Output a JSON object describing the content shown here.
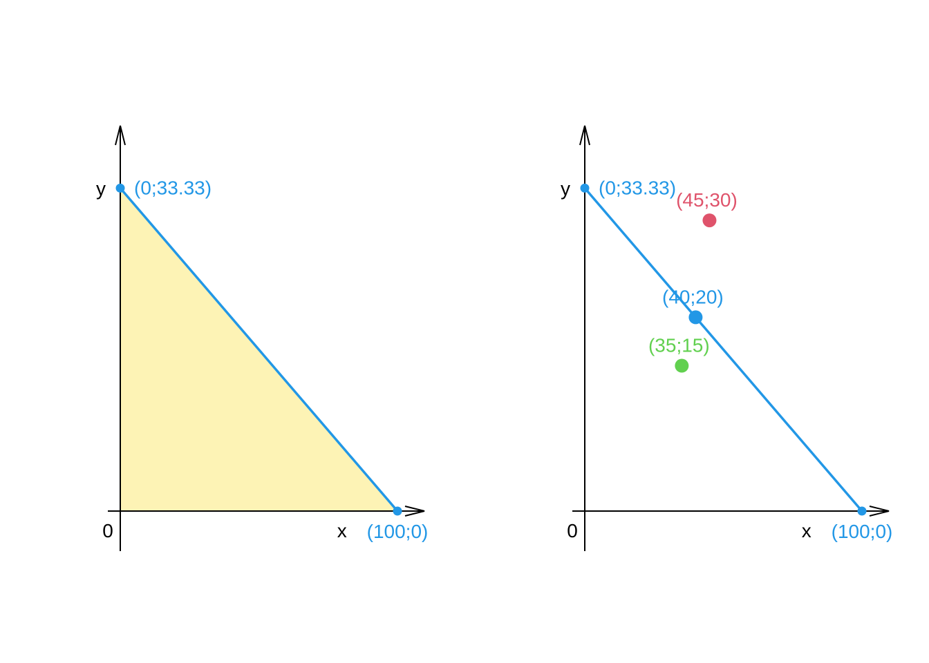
{
  "colors": {
    "line": "#2297E6",
    "fill": "#FDF3B5",
    "red": "#DF536B",
    "green": "#61D04F",
    "axis": "#000000"
  },
  "chart_data": [
    {
      "type": "line",
      "xlim": [
        0,
        110
      ],
      "ylim": [
        -15,
        43
      ],
      "axis_labels": {
        "x": "x",
        "y": "y",
        "origin": "0"
      },
      "shaded_region": true,
      "line": {
        "from": [
          0,
          33.33
        ],
        "to": [
          100,
          0
        ]
      },
      "points": [
        {
          "x": 0,
          "y": 33.33,
          "label": "(0;33.33)",
          "color": "line",
          "size": "small",
          "label_pos": "right"
        },
        {
          "x": 100,
          "y": 0,
          "label": "(100;0)",
          "color": "line",
          "size": "small",
          "label_pos": "below"
        }
      ]
    },
    {
      "type": "scatter",
      "xlim": [
        0,
        110
      ],
      "ylim": [
        -15,
        43
      ],
      "axis_labels": {
        "x": "x",
        "y": "y",
        "origin": "0"
      },
      "shaded_region": false,
      "line": {
        "from": [
          0,
          33.33
        ],
        "to": [
          100,
          0
        ]
      },
      "points": [
        {
          "x": 0,
          "y": 33.33,
          "label": "(0;33.33)",
          "color": "line",
          "size": "small",
          "label_pos": "right"
        },
        {
          "x": 100,
          "y": 0,
          "label": "(100;0)",
          "color": "line",
          "size": "small",
          "label_pos": "below"
        },
        {
          "x": 45,
          "y": 30,
          "label": "(45;30)",
          "color": "red",
          "size": "large",
          "label_pos": "above"
        },
        {
          "x": 40,
          "y": 20,
          "label": "(40;20)",
          "color": "line",
          "size": "large",
          "label_pos": "above"
        },
        {
          "x": 35,
          "y": 15,
          "label": "(35;15)",
          "color": "green",
          "size": "large",
          "label_pos": "above"
        }
      ]
    }
  ]
}
